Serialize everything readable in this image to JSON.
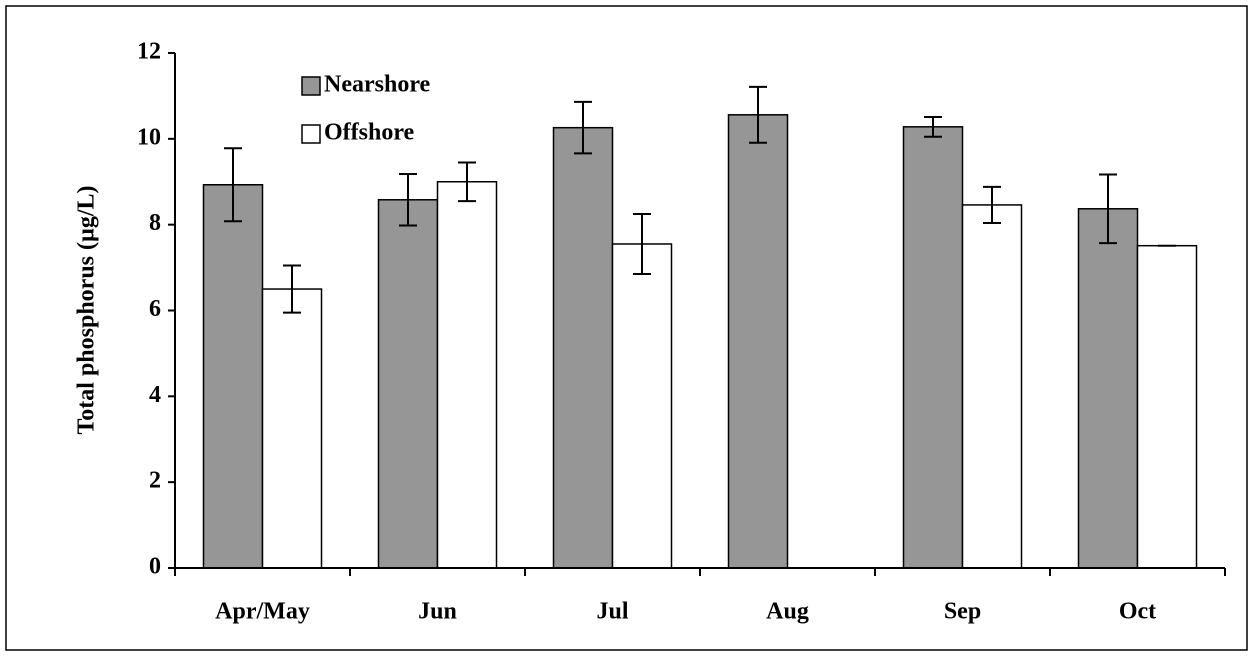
{
  "chart_data": {
    "type": "bar",
    "y_label": "Total phosphorus (µg/L)",
    "categories": [
      "Apr/May",
      "Jun",
      "Jul",
      "Aug",
      "Sep",
      "Oct"
    ],
    "series": [
      {
        "name": "Nearshore",
        "color": "#969696",
        "values": [
          8.93,
          8.58,
          10.26,
          10.56,
          10.28,
          8.37
        ],
        "errors": [
          0.85,
          0.6,
          0.6,
          0.65,
          0.23,
          0.8
        ]
      },
      {
        "name": "Offshore",
        "color": "#ffffff",
        "values": [
          6.5,
          9.0,
          7.55,
          null,
          8.46,
          7.51
        ],
        "errors": [
          0.55,
          0.45,
          0.7,
          null,
          0.42,
          0
        ]
      }
    ],
    "ylim": [
      0,
      12
    ],
    "yticks": [
      0,
      2,
      4,
      6,
      8,
      10,
      12
    ],
    "legend": "upper left",
    "grid": false
  }
}
